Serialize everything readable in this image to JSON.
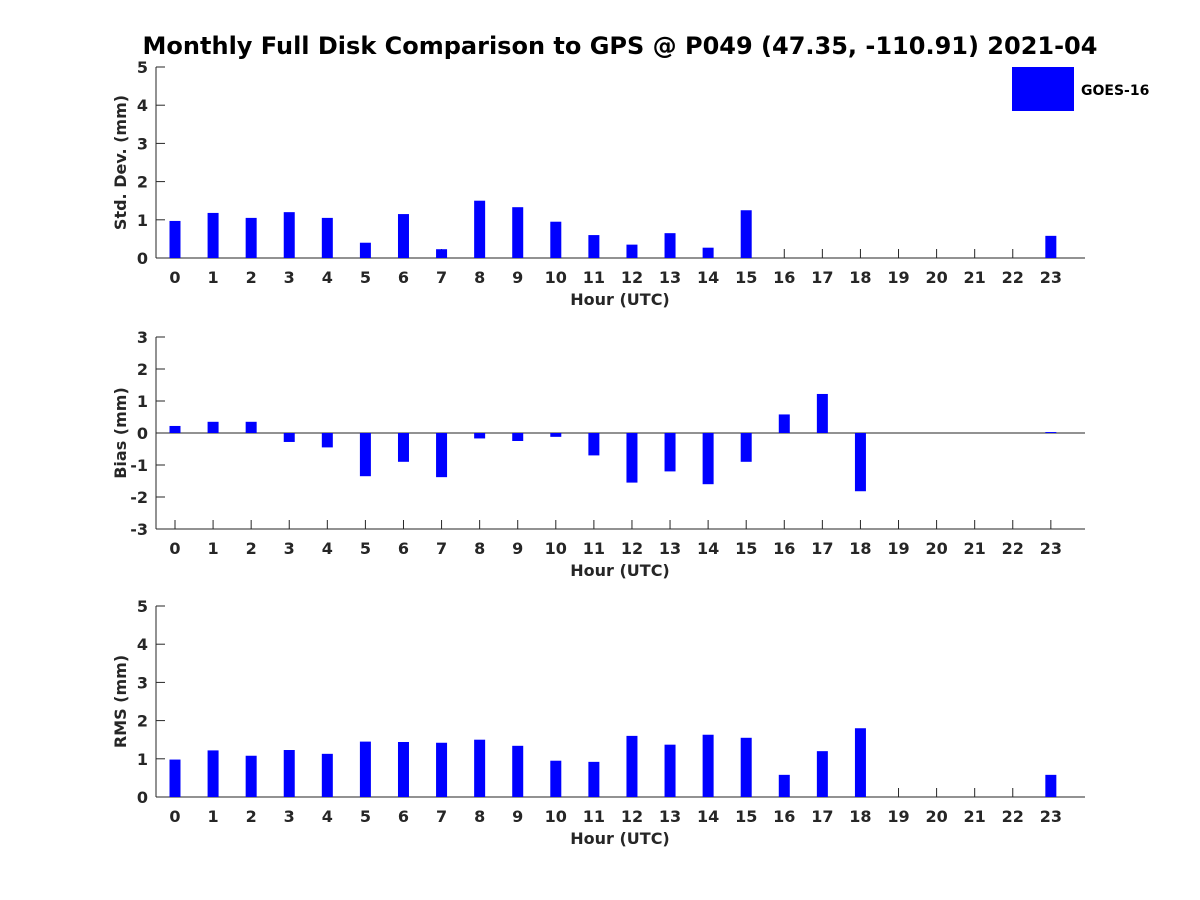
{
  "title": "Monthly Full Disk Comparison to GPS @ P049 (47.35, -110.91) 2021-04",
  "legend": {
    "label": "GOES-16",
    "color": "#0000ff"
  },
  "colors": {
    "bar": "#0000ff",
    "axis": "#262626"
  },
  "chart_data": [
    {
      "type": "bar",
      "xlabel": "Hour (UTC)",
      "ylabel": "Std. Dev. (mm)",
      "ylim": [
        0,
        5
      ],
      "yticks": [
        0,
        1,
        2,
        3,
        4,
        5
      ],
      "categories": [
        0,
        1,
        2,
        3,
        4,
        5,
        6,
        7,
        8,
        9,
        10,
        11,
        12,
        13,
        14,
        15,
        16,
        17,
        18,
        19,
        20,
        21,
        22,
        23
      ],
      "series": [
        {
          "name": "GOES-16",
          "values": [
            0.97,
            1.18,
            1.05,
            1.2,
            1.05,
            0.4,
            1.15,
            0.23,
            1.5,
            1.33,
            0.95,
            0.6,
            0.35,
            0.65,
            0.27,
            1.25,
            null,
            null,
            null,
            null,
            null,
            null,
            null,
            0.58
          ]
        }
      ]
    },
    {
      "type": "bar",
      "xlabel": "Hour (UTC)",
      "ylabel": "Bias (mm)",
      "ylim": [
        -3,
        3
      ],
      "yticks": [
        -3,
        -2,
        -1,
        0,
        1,
        2,
        3
      ],
      "categories": [
        0,
        1,
        2,
        3,
        4,
        5,
        6,
        7,
        8,
        9,
        10,
        11,
        12,
        13,
        14,
        15,
        16,
        17,
        18,
        19,
        20,
        21,
        22,
        23
      ],
      "series": [
        {
          "name": "GOES-16",
          "values": [
            0.22,
            0.35,
            0.35,
            -0.28,
            -0.45,
            -1.35,
            -0.9,
            -1.38,
            -0.17,
            -0.25,
            -0.12,
            -0.7,
            -1.55,
            -1.2,
            -1.6,
            -0.9,
            0.58,
            1.22,
            -1.82,
            null,
            null,
            null,
            null,
            0.03
          ]
        }
      ]
    },
    {
      "type": "bar",
      "xlabel": "Hour (UTC)",
      "ylabel": "RMS (mm)",
      "ylim": [
        0,
        5
      ],
      "yticks": [
        0,
        1,
        2,
        3,
        4,
        5
      ],
      "categories": [
        0,
        1,
        2,
        3,
        4,
        5,
        6,
        7,
        8,
        9,
        10,
        11,
        12,
        13,
        14,
        15,
        16,
        17,
        18,
        19,
        20,
        21,
        22,
        23
      ],
      "series": [
        {
          "name": "GOES-16",
          "values": [
            0.98,
            1.22,
            1.08,
            1.23,
            1.13,
            1.45,
            1.44,
            1.42,
            1.5,
            1.34,
            0.95,
            0.92,
            1.6,
            1.37,
            1.63,
            1.55,
            0.58,
            1.2,
            1.8,
            null,
            null,
            null,
            null,
            0.58
          ]
        }
      ]
    }
  ]
}
